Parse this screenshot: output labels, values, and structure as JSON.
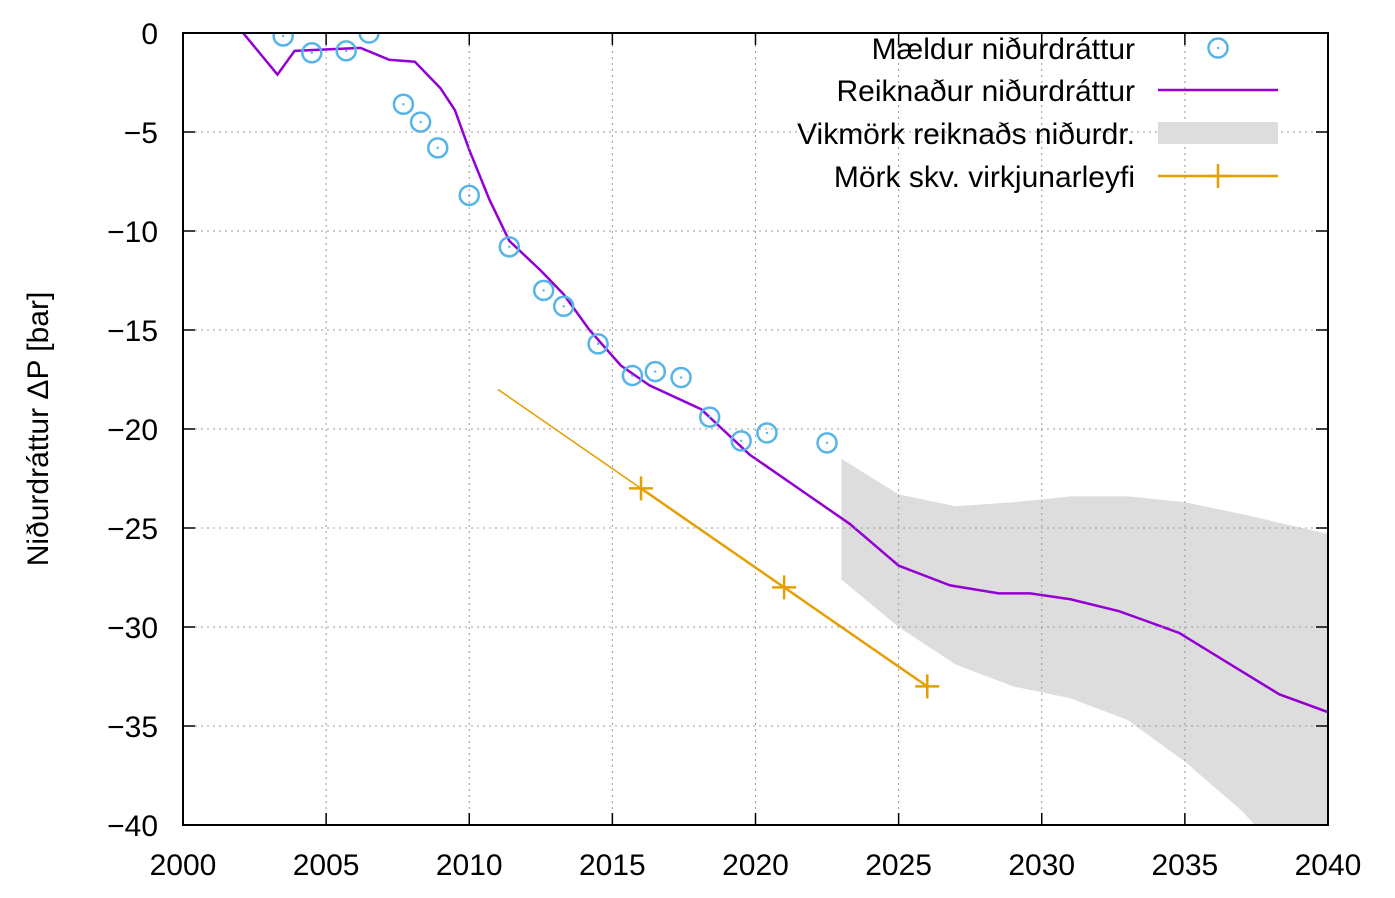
{
  "chart_data": {
    "type": "line",
    "ylabel": "Niðurdráttur ΔP [bar]",
    "xlim": [
      2000,
      2040
    ],
    "xticks": [
      2000,
      2005,
      2010,
      2015,
      2020,
      2025,
      2030,
      2035,
      2040
    ],
    "ylim": [
      -40,
      0
    ],
    "yticks": [
      {
        "value": 0,
        "label": "0"
      },
      {
        "value": -5,
        "label": "−5"
      },
      {
        "value": -10,
        "label": "−10"
      },
      {
        "value": -15,
        "label": "−15"
      },
      {
        "value": -20,
        "label": "−20"
      },
      {
        "value": -25,
        "label": "−25"
      },
      {
        "value": -30,
        "label": "−30"
      },
      {
        "value": -35,
        "label": "−35"
      },
      {
        "value": -40,
        "label": "−40"
      }
    ],
    "grid": true,
    "legend": "top-right",
    "series": [
      {
        "name": "Mældur niðurdráttur",
        "kind": "scatter",
        "color": "#56b4e9",
        "x": [
          2003.5,
          2004.5,
          2005.7,
          2006.5,
          2007.7,
          2008.3,
          2008.9,
          2010.0,
          2011.4,
          2012.6,
          2013.3,
          2014.5,
          2015.7,
          2016.5,
          2017.4,
          2018.4,
          2019.5,
          2020.4,
          2022.5
        ],
        "values": [
          -0.15,
          -1.0,
          -0.9,
          0,
          -3.6,
          -4.5,
          -5.8,
          -8.2,
          -10.8,
          -13.0,
          -13.8,
          -15.7,
          -17.3,
          -17.1,
          -17.4,
          -19.4,
          -20.6,
          -20.2,
          -20.7
        ]
      },
      {
        "name": "Reiknaður niðurdráttur",
        "kind": "line",
        "color": "#9400d3",
        "x": [
          2002.1,
          2003.3,
          2003.9,
          2006.2,
          2007.2,
          2008.1,
          2009.0,
          2009.5,
          2010.0,
          2010.7,
          2011.4,
          2012.5,
          2013.3,
          2014.2,
          2015.3,
          2016.3,
          2018.1,
          2019.8,
          2021.6,
          2023.3,
          2025.0,
          2026.8,
          2028.5,
          2029.6,
          2031.0,
          2032.7,
          2034.8,
          2036.6,
          2038.3,
          2040
        ],
        "values": [
          0,
          -2.1,
          -0.9,
          -0.75,
          -1.35,
          -1.45,
          -2.8,
          -3.9,
          -5.9,
          -8.4,
          -10.5,
          -12.0,
          -13.2,
          -15.0,
          -16.8,
          -17.8,
          -19.0,
          -21.3,
          -23.1,
          -24.8,
          -26.9,
          -27.9,
          -28.3,
          -28.3,
          -28.6,
          -29.2,
          -30.3,
          -31.9,
          -33.4,
          -34.3
        ]
      },
      {
        "name": "Vikmörk reiknaðs niðurdr.",
        "kind": "band",
        "color": "#dddddd",
        "x": [
          2023,
          2025,
          2027,
          2029,
          2031,
          2033,
          2035,
          2037,
          2040
        ],
        "high": [
          -21.5,
          -23.3,
          -23.9,
          -23.7,
          -23.4,
          -23.4,
          -23.7,
          -24.3,
          -25.3
        ],
        "low": [
          -27.6,
          -30.0,
          -31.9,
          -33.0,
          -33.6,
          -34.7,
          -36.8,
          -39.3,
          -44
        ]
      },
      {
        "name": "Mörk skv. virkjunarleyfi",
        "kind": "linepoints",
        "color": "#e69f00",
        "x": [
          2011,
          2016,
          2021,
          2026
        ],
        "values": [
          -18,
          -23,
          -28,
          -33
        ]
      }
    ]
  }
}
